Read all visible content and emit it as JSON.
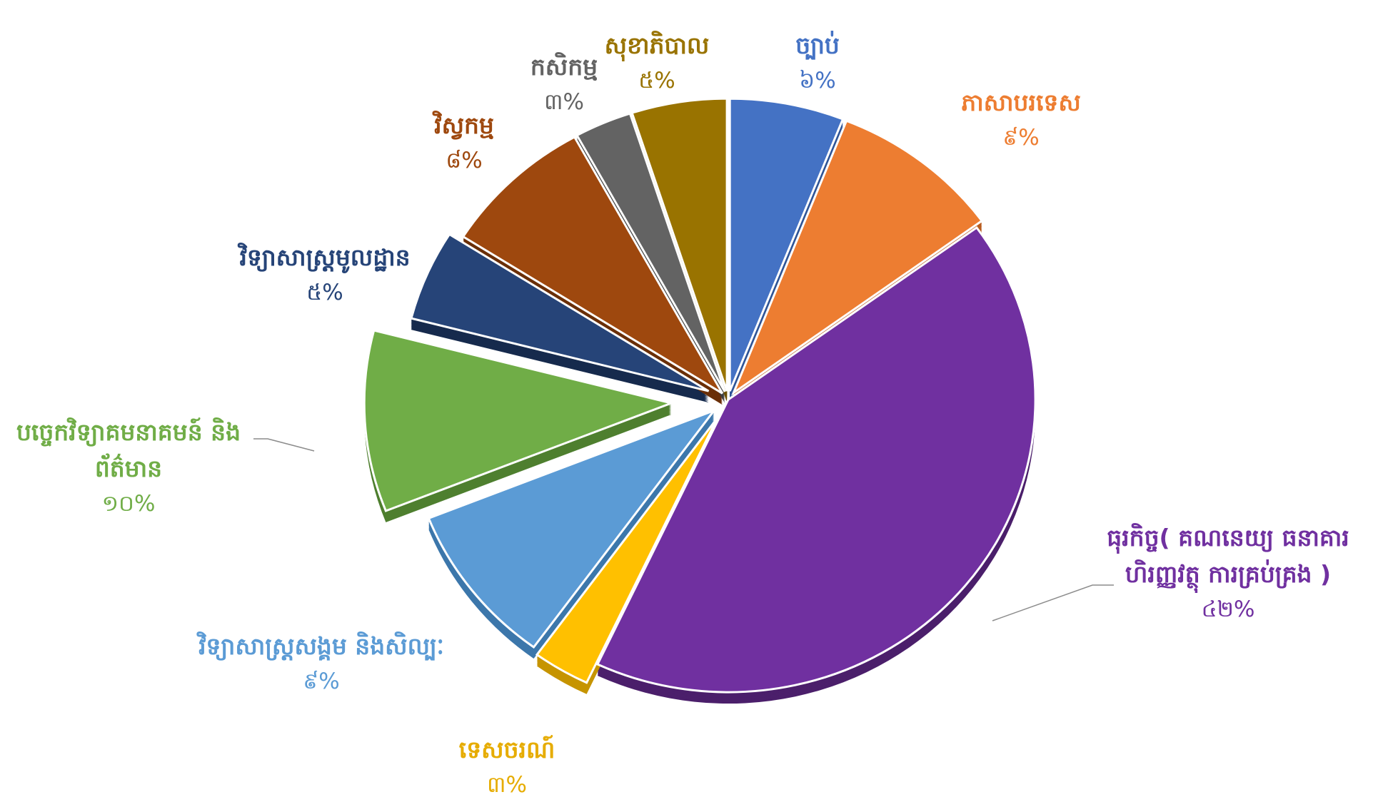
{
  "chart_data": {
    "type": "pie",
    "style": "exploded-3d",
    "slices": [
      {
        "name": "ច្បាប់",
        "label": "ច្បាប់",
        "value": 6,
        "pct": "៦%",
        "color": "#4472c4",
        "side": "#2f5597"
      },
      {
        "name": "ភាសាបរទេស",
        "label": "ភាសាបរទេស",
        "value": 9,
        "pct": "៩%",
        "color": "#ed7d31",
        "side": "#b85c1f"
      },
      {
        "name": "ធុរកិច្ច",
        "label": "ធុរកិច្ច( គណនេយ្យ ធនាគារ ហិរញ្ញវត្ថុ ការគ្រប់គ្រង )",
        "value": 42,
        "pct": "៤២%",
        "color": "#7030a0",
        "side": "#4b1f6b"
      },
      {
        "name": "ទេសចរណ៍",
        "label": "ទេសចរណ៍",
        "value": 3,
        "pct": "៣%",
        "color": "#ffc000",
        "side": "#c69400"
      },
      {
        "name": "វិទ្យាសាស្ត្រសង្គម និងសិល្បៈ",
        "label": "វិទ្យាសាស្ត្រសង្គម និងសិល្បៈ",
        "value": 9,
        "pct": "៩%",
        "color": "#5b9bd5",
        "side": "#3c77ab"
      },
      {
        "name": "បច្ចេកវិទ្យាគមនាគមន៍ និងព័ត៌មាន",
        "label": "បច្ចេកវិទ្យាគមនាគមន៍ និង ព័ត៌មាន",
        "value": 10,
        "pct": "១០%",
        "color": "#70ad47",
        "side": "#4e7f2f"
      },
      {
        "name": "វិទ្យាសាស្ត្រមូលដ្ឋាន",
        "label": "វិទ្យាសាស្ត្រមូលដ្ឋាន",
        "value": 5,
        "pct": "៥%",
        "color": "#264478",
        "side": "#162a4d"
      },
      {
        "name": "វិស្វកម្ម",
        "label": "វិស្វកម្ម",
        "value": 8,
        "pct": "៨%",
        "color": "#9e480e",
        "side": "#6a2f08"
      },
      {
        "name": "កសិកម្ម",
        "label": "កសិកម្ម",
        "value": 3,
        "pct": "៣%",
        "color": "#636363",
        "side": "#3d3d3d"
      },
      {
        "name": "សុខាភិបាល",
        "label": "សុខាភិបាល",
        "value": 5,
        "pct": "៥%",
        "color": "#997300",
        "side": "#6b5000"
      }
    ]
  }
}
